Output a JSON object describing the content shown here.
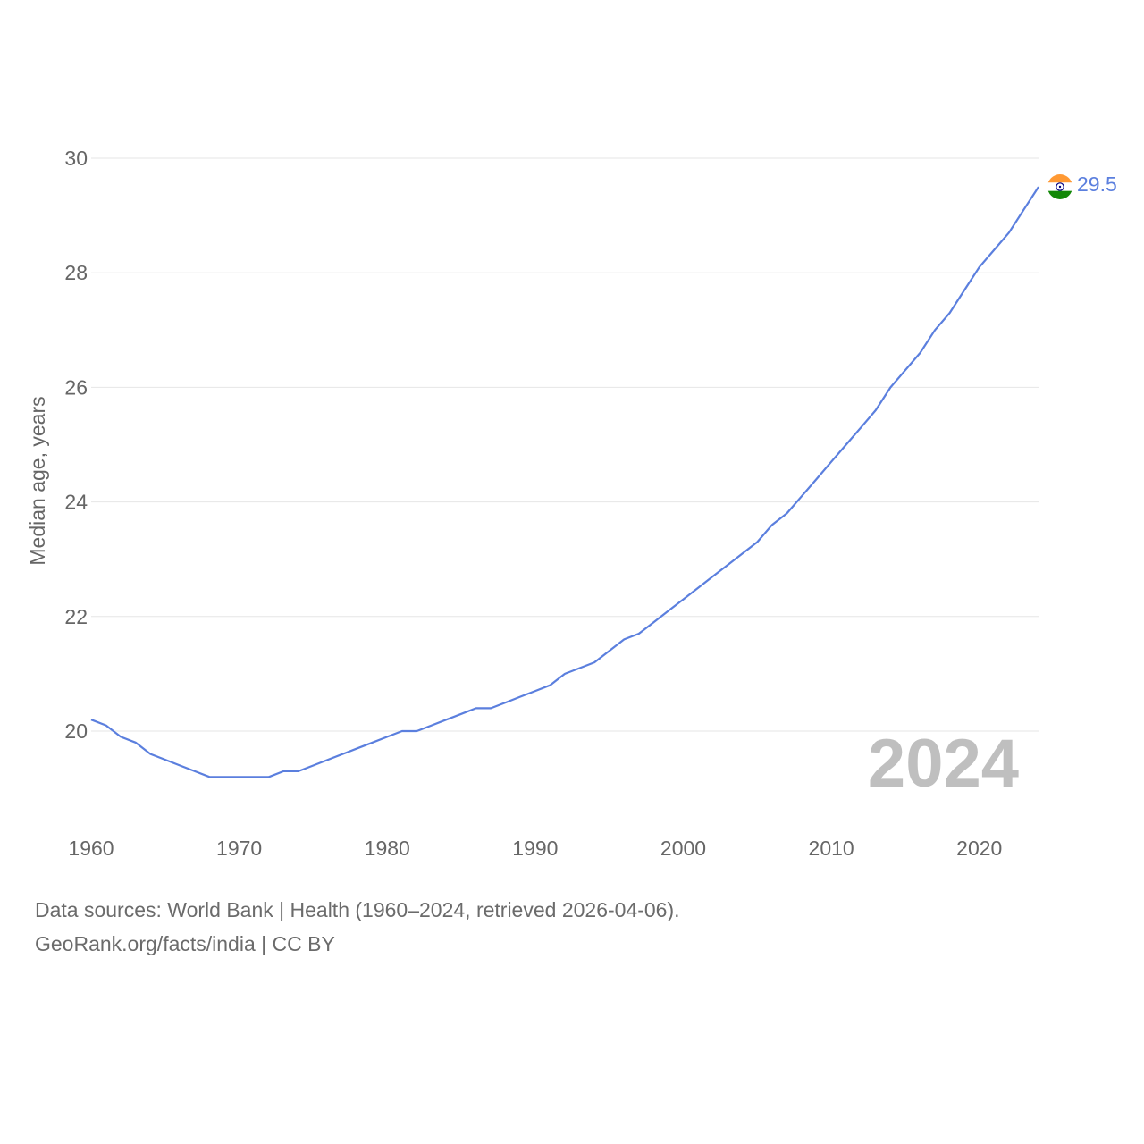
{
  "chart_data": {
    "type": "line",
    "title": "",
    "xlabel": "",
    "ylabel": "Median age, years",
    "xlim": [
      1960,
      2024
    ],
    "ylim": [
      18.2,
      30.5
    ],
    "y_ticks": [
      20,
      22,
      24,
      26,
      28,
      30
    ],
    "x_ticks": [
      1960,
      1970,
      1980,
      1990,
      2000,
      2010,
      2020
    ],
    "grid": true,
    "current_year": "2024",
    "series": [
      {
        "name": "India",
        "color": "#5b7fde",
        "end_label": "29.5",
        "x": [
          1960,
          1961,
          1962,
          1963,
          1964,
          1965,
          1966,
          1967,
          1968,
          1969,
          1970,
          1971,
          1972,
          1973,
          1974,
          1975,
          1976,
          1977,
          1978,
          1979,
          1980,
          1981,
          1982,
          1983,
          1984,
          1985,
          1986,
          1987,
          1988,
          1989,
          1990,
          1991,
          1992,
          1993,
          1994,
          1995,
          1996,
          1997,
          1998,
          1999,
          2000,
          2001,
          2002,
          2003,
          2004,
          2005,
          2006,
          2007,
          2008,
          2009,
          2010,
          2011,
          2012,
          2013,
          2014,
          2015,
          2016,
          2017,
          2018,
          2019,
          2020,
          2021,
          2022,
          2023,
          2024
        ],
        "values": [
          20.2,
          20.1,
          19.9,
          19.8,
          19.6,
          19.5,
          19.4,
          19.3,
          19.2,
          19.2,
          19.2,
          19.2,
          19.2,
          19.3,
          19.3,
          19.4,
          19.5,
          19.6,
          19.7,
          19.8,
          19.9,
          20.0,
          20.0,
          20.1,
          20.2,
          20.3,
          20.4,
          20.4,
          20.5,
          20.6,
          20.7,
          20.8,
          21.0,
          21.1,
          21.2,
          21.4,
          21.6,
          21.7,
          21.9,
          22.1,
          22.3,
          22.5,
          22.7,
          22.9,
          23.1,
          23.3,
          23.6,
          23.8,
          24.1,
          24.4,
          24.7,
          25.0,
          25.3,
          25.6,
          26.0,
          26.3,
          26.6,
          27.0,
          27.3,
          27.7,
          28.1,
          28.4,
          28.7,
          29.1,
          29.5
        ]
      }
    ]
  },
  "footer": {
    "line1": "Data sources: World Bank | Health (1960–2024, retrieved 2026-04-06).",
    "line2": "GeoRank.org/facts/india | CC BY"
  },
  "icons": {
    "end_marker": "india-flag-icon"
  }
}
